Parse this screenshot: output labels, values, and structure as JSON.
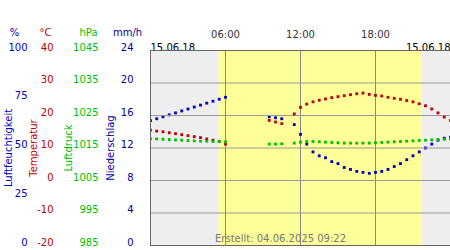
{
  "chart_data": [
    {
      "type": "scatter",
      "ylabel": "Luftfeuchtigkeit",
      "yunit": "%",
      "color": "#0000c0",
      "marker": "square",
      "x": [
        0,
        0.5,
        1,
        1.5,
        2,
        2.5,
        3,
        3.5,
        4,
        4.5,
        5,
        5.5,
        6,
        6.5,
        7,
        7.5,
        8,
        8.5,
        9,
        9.5,
        10,
        10.5,
        11,
        11.5,
        12,
        12.5,
        13,
        13.5,
        14,
        14.5,
        15,
        15.5,
        16,
        16.5,
        17,
        17.5,
        18,
        18.5,
        19,
        19.5,
        20,
        20.5,
        21,
        21.5,
        22,
        22.5,
        23,
        23.5,
        24
      ],
      "values": [
        64,
        65,
        66,
        67,
        68,
        69,
        70,
        71,
        72,
        73,
        74,
        75,
        76,
        null,
        null,
        null,
        null,
        null,
        null,
        66,
        65.5,
        65,
        null,
        62,
        57,
        52,
        48,
        46,
        45,
        43,
        42,
        40,
        39,
        38,
        37.5,
        37,
        37.5,
        38,
        39,
        40.5,
        42,
        44,
        46,
        48,
        50,
        52,
        54,
        55,
        55.5
      ],
      "ylim": [
        0,
        100
      ],
      "yticks": [
        0,
        25,
        50,
        75,
        100
      ],
      "xlim": [
        0,
        24
      ],
      "xticks": [
        {
          "value": 0,
          "label": "15.06.18"
        },
        {
          "value": 6,
          "label": "06:00"
        },
        {
          "value": 12,
          "label": "12:00"
        },
        {
          "value": 18,
          "label": "18:00"
        },
        {
          "value": 24,
          "label": "15.06.18"
        }
      ],
      "grid": "x",
      "daylight": [
        5.5,
        21.75
      ],
      "annotation": "Erstellt: 04.06.2025 09:22"
    },
    {
      "type": "scatter",
      "ylabel": "Temperatur",
      "yunit": "°C",
      "color": "#c00000",
      "marker": "square",
      "values": [
        15.5,
        15.2,
        15.0,
        14.7,
        14.4,
        14.1,
        13.8,
        13.5,
        13.2,
        12.8,
        12.4,
        12.0,
        11.2,
        null,
        null,
        null,
        null,
        null,
        null,
        18.5,
        18.0,
        17.5,
        null,
        20.5,
        22.5,
        23.5,
        24.2,
        24.7,
        25.1,
        25.5,
        25.8,
        26.1,
        26.4,
        26.7,
        26.9,
        26.5,
        26.2,
        26.0,
        25.6,
        25.3,
        25.0,
        24.6,
        24.2,
        23.6,
        23.0,
        22.0,
        20.8,
        19.5,
        18.5
      ],
      "ylim": [
        -20,
        40
      ],
      "yticks": [
        -20,
        -10,
        0,
        10,
        20,
        30,
        40
      ],
      "grid": "y"
    },
    {
      "type": "scatter",
      "ylabel": "Luftdruck",
      "yunit": "hPa",
      "color": "#00c000",
      "marker": "square",
      "values": [
        1017.8,
        1017.8,
        1017.7,
        1017.6,
        1017.5,
        1017.4,
        1017.3,
        1017.2,
        1017.1,
        1017.1,
        1017.0,
        1017.0,
        1016.9,
        null,
        null,
        null,
        null,
        null,
        null,
        1016.2,
        1016.2,
        1016.3,
        null,
        1016.5,
        1016.8,
        1017.0,
        1017.0,
        1016.9,
        1016.8,
        1016.7,
        1016.6,
        1016.5,
        1016.5,
        1016.5,
        1016.5,
        1016.5,
        1016.6,
        1016.7,
        1016.8,
        1016.9,
        1017.0,
        1017.1,
        1017.2,
        1017.3,
        1017.4,
        1017.5,
        1017.6,
        1017.7,
        1017.8
      ],
      "ylim": [
        985,
        1045
      ],
      "yticks": [
        985,
        995,
        1005,
        1015,
        1025,
        1035,
        1045
      ]
    },
    {
      "type": "scatter",
      "ylabel": "Niederschlag",
      "yunit": "mm/h",
      "color": "#000099",
      "marker": "square",
      "ylim": [
        0,
        24
      ],
      "yticks": [
        0,
        4,
        8,
        12,
        16,
        20,
        24
      ]
    }
  ]
}
